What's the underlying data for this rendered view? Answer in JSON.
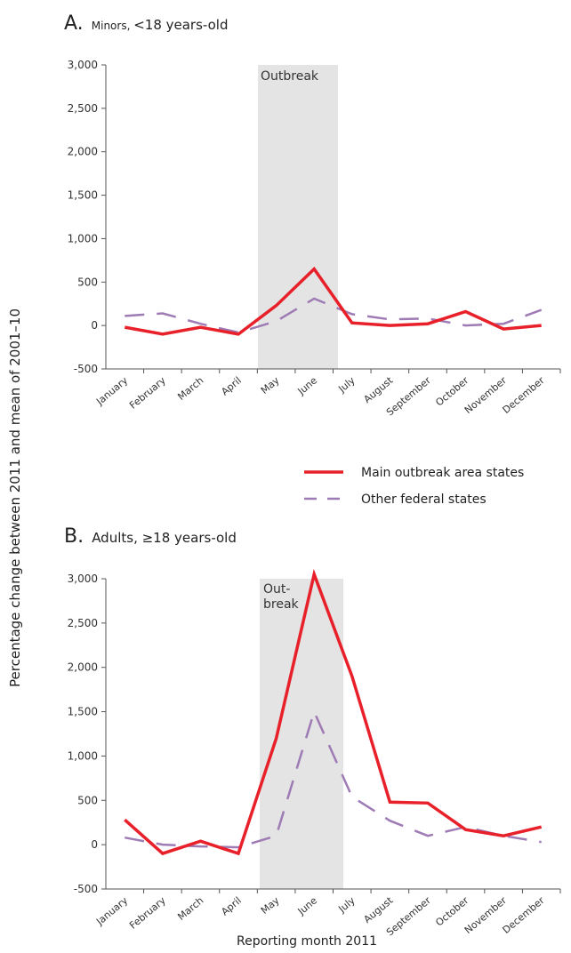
{
  "ylabel": "Percentage change between 2011 and mean of 2001–10",
  "xlabel": "Reporting month 2011",
  "legend": {
    "main": "Main outbreak area states",
    "other": "Other federal states"
  },
  "colors": {
    "main": "#e8202a",
    "other": "#9e7bb5",
    "shade": "#e3e4e3",
    "axis": "#555555"
  },
  "panels": {
    "A": {
      "letter": "A.",
      "subtitle_prefix": "Minors, ",
      "subtitle_rest": "<18 years-old",
      "shade_lines": [
        "Outbreak"
      ]
    },
    "B": {
      "letter": "B.",
      "subtitle": "Adults, ≥18 years-old",
      "shade_lines": [
        "Out-",
        "break"
      ]
    }
  },
  "chart_data": [
    {
      "type": "line",
      "panel": "A",
      "categories": [
        "January",
        "February",
        "March",
        "April",
        "May",
        "June",
        "July",
        "August",
        "September",
        "October",
        "November",
        "December"
      ],
      "ylim": [
        -500,
        3000
      ],
      "yticks": [
        -500,
        0,
        500,
        1000,
        1500,
        2000,
        2500,
        3000
      ],
      "ytick_labels": [
        "-500",
        "0",
        "500",
        "1,000",
        "1,500",
        "2,000",
        "2,500",
        "3,000"
      ],
      "shaded_months": [
        "May",
        "June"
      ],
      "series": [
        {
          "name": "Main outbreak area states",
          "style": "solid",
          "values": [
            -20,
            -100,
            -20,
            -100,
            230,
            650,
            30,
            0,
            20,
            160,
            -40,
            0
          ]
        },
        {
          "name": "Other federal states",
          "style": "dashed",
          "values": [
            110,
            140,
            20,
            -80,
            50,
            310,
            130,
            70,
            80,
            0,
            20,
            180
          ]
        }
      ]
    },
    {
      "type": "line",
      "panel": "B",
      "categories": [
        "January",
        "February",
        "March",
        "April",
        "May",
        "June",
        "July",
        "August",
        "September",
        "October",
        "November",
        "December"
      ],
      "ylim": [
        -500,
        3000
      ],
      "yticks": [
        -500,
        0,
        500,
        1000,
        1500,
        2000,
        2500,
        3000
      ],
      "ytick_labels": [
        "-500",
        "0",
        "500",
        "1,000",
        "1,500",
        "2,000",
        "2,500",
        "3,000"
      ],
      "shaded_months": [
        "May",
        "June"
      ],
      "series": [
        {
          "name": "Main outbreak area states",
          "style": "solid",
          "values": [
            280,
            -100,
            40,
            -100,
            1200,
            3050,
            1900,
            480,
            470,
            170,
            100,
            200
          ]
        },
        {
          "name": "Other federal states",
          "style": "dashed",
          "values": [
            80,
            0,
            -20,
            -30,
            100,
            1500,
            540,
            270,
            100,
            200,
            100,
            30
          ]
        }
      ]
    }
  ]
}
